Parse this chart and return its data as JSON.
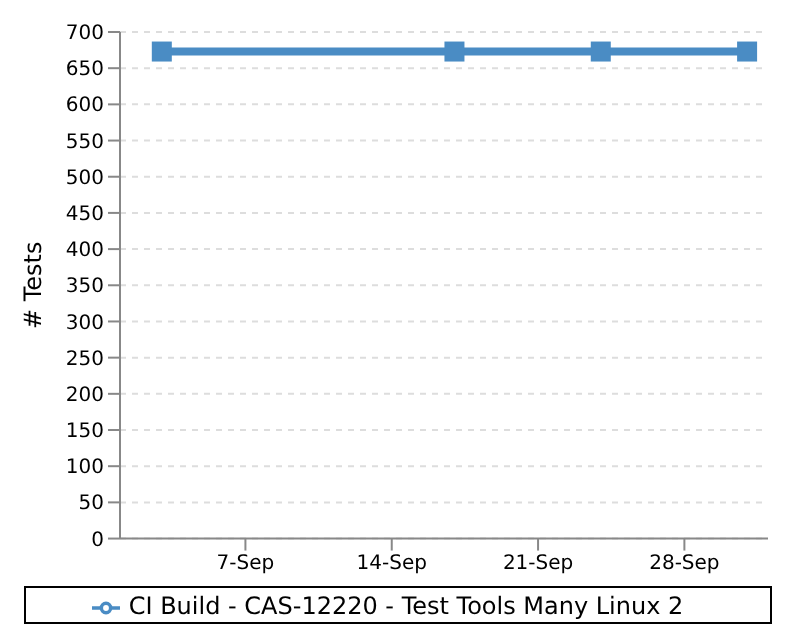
{
  "chart_data": {
    "type": "line",
    "ylabel": "# Tests",
    "x": [
      "--09-03",
      "--09-17",
      "--09-24",
      "--10-01"
    ],
    "series": [
      {
        "name": "CI Build - CAS-12220 - Test Tools Many Linux 2",
        "color": "#4a8cc4",
        "values": [
          673,
          673,
          673,
          673
        ]
      }
    ],
    "xlim": [
      "--09-01",
      "--10-02"
    ],
    "xticks": [
      {
        "value": "--09-07",
        "label": "7-Sep"
      },
      {
        "value": "--09-14",
        "label": "14-Sep"
      },
      {
        "value": "--09-21",
        "label": "21-Sep"
      },
      {
        "value": "--09-28",
        "label": "28-Sep"
      }
    ],
    "ylim": [
      0,
      700
    ],
    "yticks": [
      0,
      50,
      100,
      150,
      200,
      250,
      300,
      350,
      400,
      450,
      500,
      550,
      600,
      650,
      700
    ],
    "grid": "y",
    "legend": "bottom",
    "marker": "square",
    "line_style": "solid"
  }
}
